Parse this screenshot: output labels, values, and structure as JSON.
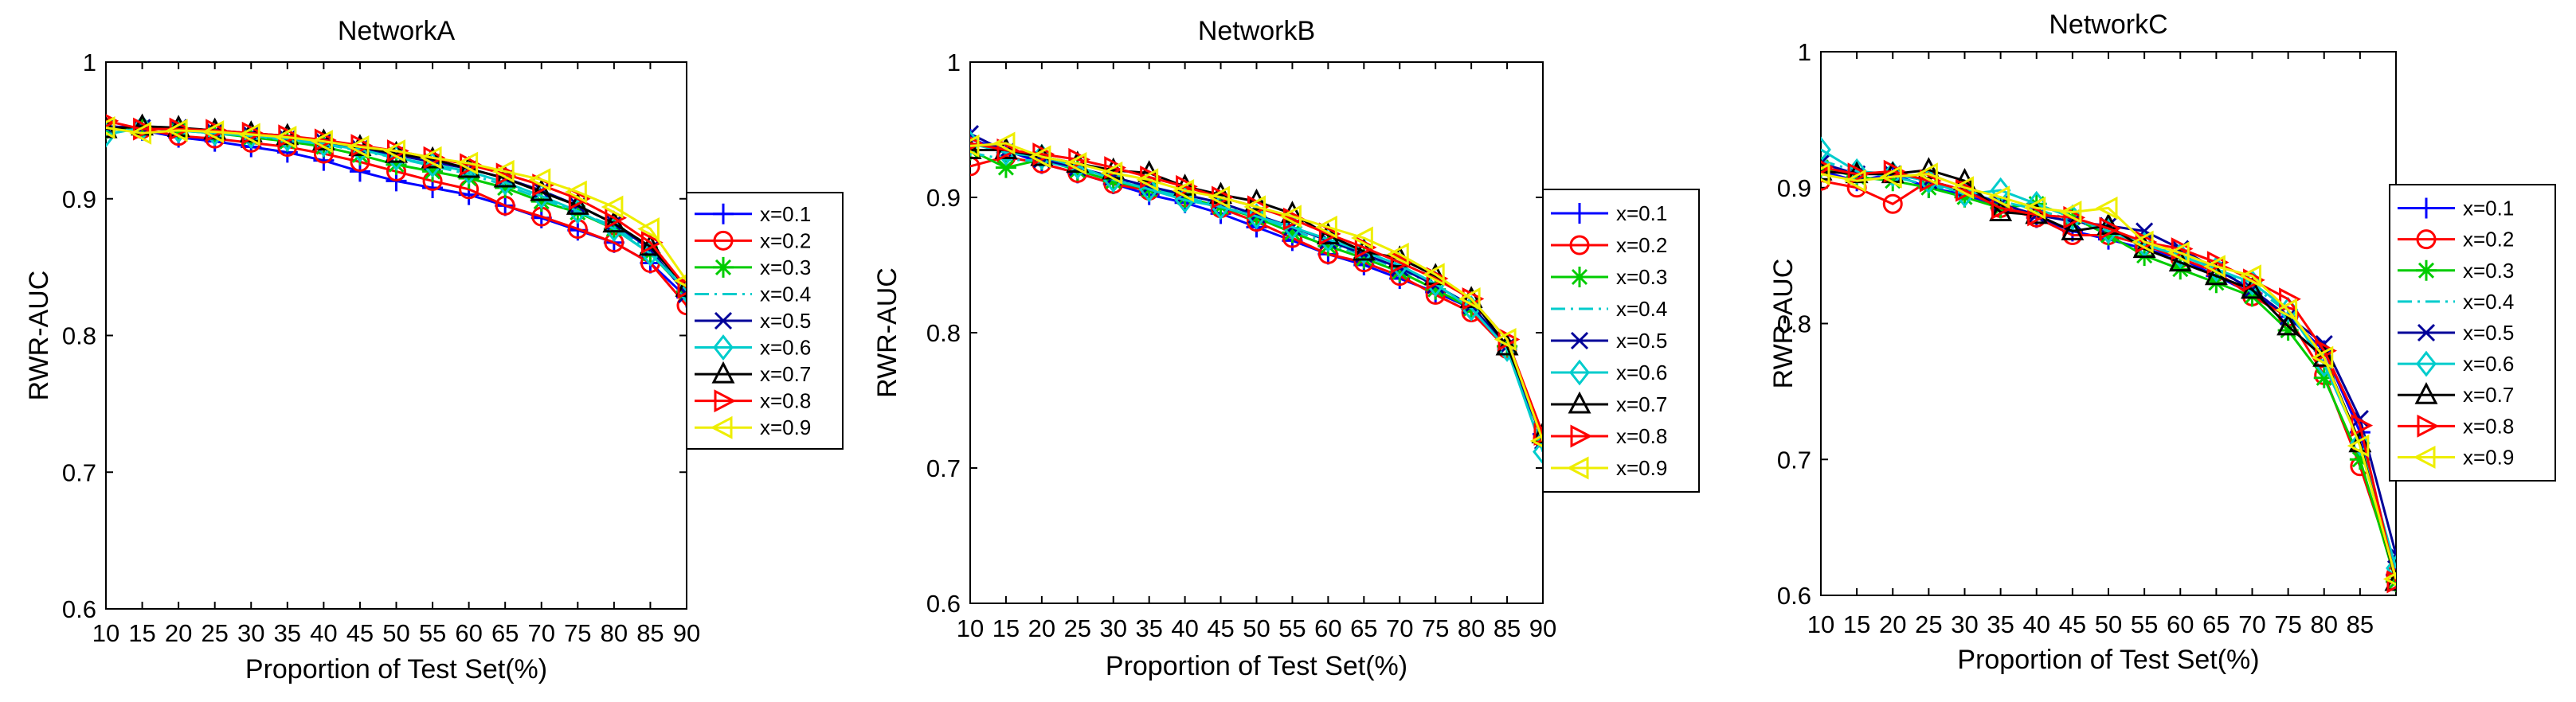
{
  "chart_data": [
    {
      "type": "line",
      "title": "NetworkA",
      "xlabel": "Proportion of Test Set(%)",
      "ylabel": "RWR-AUC",
      "xlim": [
        10,
        90
      ],
      "ylim": [
        0.6,
        1
      ],
      "xticks": [
        10,
        15,
        20,
        25,
        30,
        35,
        40,
        45,
        50,
        55,
        60,
        65,
        70,
        75,
        80,
        85,
        90
      ],
      "yticks": [
        0.6,
        0.7,
        0.8,
        0.9,
        1
      ],
      "ytick_labels": [
        "0.6",
        "0.7",
        "0.8",
        "0.9",
        "1"
      ],
      "legend": "outside-right",
      "x": [
        10,
        15,
        20,
        25,
        30,
        35,
        40,
        45,
        50,
        55,
        60,
        65,
        70,
        75,
        80,
        85,
        90
      ],
      "series": [
        {
          "name": "x=0.1",
          "color": "#0000ff",
          "marker": "plus",
          "line": "solid",
          "values": [
            0.951,
            0.95,
            0.945,
            0.942,
            0.938,
            0.934,
            0.928,
            0.92,
            0.913,
            0.908,
            0.903,
            0.895,
            0.886,
            0.877,
            0.868,
            0.853,
            0.828
          ]
        },
        {
          "name": "x=0.2",
          "color": "#ff0000",
          "marker": "circle",
          "line": "solid",
          "values": [
            0.952,
            0.951,
            0.946,
            0.944,
            0.941,
            0.938,
            0.933,
            0.927,
            0.92,
            0.913,
            0.907,
            0.895,
            0.887,
            0.878,
            0.868,
            0.853,
            0.822
          ]
        },
        {
          "name": "x=0.3",
          "color": "#00cc00",
          "marker": "star",
          "line": "solid",
          "values": [
            0.951,
            0.952,
            0.95,
            0.948,
            0.945,
            0.942,
            0.938,
            0.932,
            0.925,
            0.92,
            0.915,
            0.908,
            0.898,
            0.89,
            0.878,
            0.86,
            0.832
          ]
        },
        {
          "name": "x=0.4",
          "color": "#00cccc",
          "marker": "none",
          "line": "dashdot",
          "values": [
            0.95,
            0.952,
            0.951,
            0.948,
            0.946,
            0.943,
            0.94,
            0.935,
            0.93,
            0.924,
            0.918,
            0.91,
            0.9,
            0.89,
            0.88,
            0.862,
            0.833
          ]
        },
        {
          "name": "x=0.5",
          "color": "#000099",
          "marker": "x",
          "line": "solid",
          "values": [
            0.953,
            0.952,
            0.952,
            0.949,
            0.947,
            0.944,
            0.942,
            0.937,
            0.932,
            0.927,
            0.922,
            0.915,
            0.906,
            0.895,
            0.882,
            0.863,
            0.83
          ]
        },
        {
          "name": "x=0.6",
          "color": "#00cccc",
          "marker": "diamond",
          "line": "solid",
          "values": [
            0.947,
            0.952,
            0.95,
            0.948,
            0.946,
            0.944,
            0.94,
            0.936,
            0.93,
            0.925,
            0.92,
            0.912,
            0.902,
            0.891,
            0.878,
            0.86,
            0.833
          ]
        },
        {
          "name": "x=0.7",
          "color": "#000000",
          "marker": "triangle-up",
          "line": "solid",
          "values": [
            0.951,
            0.953,
            0.952,
            0.95,
            0.948,
            0.946,
            0.942,
            0.938,
            0.933,
            0.929,
            0.922,
            0.915,
            0.905,
            0.895,
            0.882,
            0.865,
            0.835
          ]
        },
        {
          "name": "x=0.8",
          "color": "#ff0000",
          "marker": "triangle-right",
          "line": "solid",
          "values": [
            0.957,
            0.951,
            0.951,
            0.95,
            0.948,
            0.946,
            0.943,
            0.939,
            0.935,
            0.93,
            0.925,
            0.918,
            0.91,
            0.9,
            0.886,
            0.868,
            0.835
          ]
        },
        {
          "name": "x=0.9",
          "color": "#eeee00",
          "marker": "triangle-left",
          "line": "solid",
          "values": [
            0.952,
            0.948,
            0.95,
            0.949,
            0.947,
            0.945,
            0.942,
            0.938,
            0.935,
            0.93,
            0.926,
            0.92,
            0.914,
            0.905,
            0.894,
            0.878,
            0.84
          ]
        }
      ]
    },
    {
      "type": "line",
      "title": "NetworkB",
      "xlabel": "Proportion of Test Set(%)",
      "ylabel": "RWR-AUC",
      "xlim": [
        10,
        90
      ],
      "ylim": [
        0.6,
        1
      ],
      "xticks": [
        10,
        15,
        20,
        25,
        30,
        35,
        40,
        45,
        50,
        55,
        60,
        65,
        70,
        75,
        80,
        85,
        90
      ],
      "yticks": [
        0.6,
        0.7,
        0.8,
        0.9,
        1
      ],
      "ytick_labels": [
        "0.6",
        "0.7",
        "0.8",
        "0.9",
        "1"
      ],
      "legend": "outside-right",
      "x": [
        10,
        15,
        20,
        25,
        30,
        35,
        40,
        45,
        50,
        55,
        60,
        65,
        70,
        75,
        80,
        85,
        90
      ],
      "series": [
        {
          "name": "x=0.1",
          "color": "#0000ff",
          "marker": "plus",
          "line": "solid",
          "values": [
            0.943,
            0.935,
            0.925,
            0.918,
            0.91,
            0.902,
            0.896,
            0.888,
            0.878,
            0.868,
            0.858,
            0.85,
            0.84,
            0.83,
            0.818,
            0.79,
            0.725
          ]
        },
        {
          "name": "x=0.2",
          "color": "#ff0000",
          "marker": "circle",
          "line": "solid",
          "values": [
            0.923,
            0.93,
            0.925,
            0.918,
            0.91,
            0.905,
            0.9,
            0.892,
            0.882,
            0.87,
            0.858,
            0.852,
            0.842,
            0.828,
            0.815,
            0.788,
            0.722
          ]
        },
        {
          "name": "x=0.3",
          "color": "#00cc00",
          "marker": "star",
          "line": "solid",
          "values": [
            0.935,
            0.922,
            0.928,
            0.92,
            0.912,
            0.906,
            0.9,
            0.893,
            0.885,
            0.874,
            0.864,
            0.855,
            0.845,
            0.832,
            0.818,
            0.79,
            0.72
          ]
        },
        {
          "name": "x=0.4",
          "color": "#00cccc",
          "marker": "none",
          "line": "dashdot",
          "values": [
            0.933,
            0.928,
            0.927,
            0.921,
            0.914,
            0.907,
            0.9,
            0.894,
            0.886,
            0.876,
            0.866,
            0.857,
            0.847,
            0.835,
            0.82,
            0.79,
            0.715
          ]
        },
        {
          "name": "x=0.5",
          "color": "#000099",
          "marker": "x",
          "line": "solid",
          "values": [
            0.947,
            0.934,
            0.928,
            0.922,
            0.915,
            0.908,
            0.902,
            0.896,
            0.887,
            0.878,
            0.868,
            0.858,
            0.848,
            0.835,
            0.82,
            0.79,
            0.72
          ]
        },
        {
          "name": "x=0.6",
          "color": "#00cccc",
          "marker": "diamond",
          "line": "solid",
          "values": [
            0.94,
            0.933,
            0.93,
            0.923,
            0.913,
            0.906,
            0.898,
            0.893,
            0.886,
            0.878,
            0.869,
            0.86,
            0.85,
            0.836,
            0.818,
            0.788,
            0.712
          ]
        },
        {
          "name": "x=0.7",
          "color": "#000000",
          "marker": "triangle-up",
          "line": "solid",
          "values": [
            0.935,
            0.935,
            0.93,
            0.925,
            0.92,
            0.918,
            0.908,
            0.902,
            0.897,
            0.888,
            0.872,
            0.86,
            0.855,
            0.842,
            0.825,
            0.79,
            0.725
          ]
        },
        {
          "name": "x=0.8",
          "color": "#ff0000",
          "marker": "triangle-right",
          "line": "solid",
          "values": [
            0.94,
            0.935,
            0.932,
            0.928,
            0.922,
            0.915,
            0.908,
            0.9,
            0.893,
            0.884,
            0.873,
            0.863,
            0.852,
            0.84,
            0.825,
            0.795,
            0.725
          ]
        },
        {
          "name": "x=0.9",
          "color": "#eeee00",
          "marker": "triangle-left",
          "line": "solid",
          "values": [
            0.938,
            0.94,
            0.93,
            0.925,
            0.918,
            0.913,
            0.905,
            0.9,
            0.893,
            0.886,
            0.878,
            0.87,
            0.858,
            0.843,
            0.825,
            0.795,
            0.72
          ]
        }
      ]
    },
    {
      "type": "line",
      "title": "NetworkC",
      "xlabel": "Proportion of Test Set(%)",
      "ylabel": "RWR-AUC",
      "xlim": [
        10,
        90
      ],
      "ylim": [
        0.6,
        1
      ],
      "xticks": [
        10,
        15,
        20,
        25,
        30,
        35,
        40,
        45,
        50,
        55,
        60,
        65,
        70,
        75,
        80,
        85
      ],
      "yticks": [
        0.6,
        0.7,
        0.8,
        0.9,
        1
      ],
      "ytick_labels": [
        "0.6",
        "0.7",
        "0.8",
        "0.9",
        "1"
      ],
      "legend": "outside-right",
      "x": [
        10,
        15,
        20,
        25,
        30,
        35,
        40,
        45,
        50,
        55,
        60,
        65,
        70,
        75,
        80,
        85,
        90
      ],
      "series": [
        {
          "name": "x=0.1",
          "color": "#0000ff",
          "marker": "plus",
          "line": "solid",
          "values": [
            0.912,
            0.905,
            0.91,
            0.9,
            0.895,
            0.885,
            0.878,
            0.868,
            0.862,
            0.855,
            0.848,
            0.835,
            0.822,
            0.805,
            0.78,
            0.72,
            0.615
          ]
        },
        {
          "name": "x=0.2",
          "color": "#ff0000",
          "marker": "circle",
          "line": "solid",
          "values": [
            0.905,
            0.9,
            0.888,
            0.905,
            0.898,
            0.885,
            0.878,
            0.865,
            0.865,
            0.858,
            0.848,
            0.838,
            0.82,
            0.805,
            0.762,
            0.695,
            0.615
          ]
        },
        {
          "name": "x=0.3",
          "color": "#00cc00",
          "marker": "star",
          "line": "solid",
          "values": [
            0.915,
            0.908,
            0.905,
            0.9,
            0.893,
            0.885,
            0.888,
            0.878,
            0.865,
            0.85,
            0.84,
            0.83,
            0.82,
            0.795,
            0.76,
            0.7,
            0.61
          ]
        },
        {
          "name": "x=0.4",
          "color": "#00cccc",
          "marker": "none",
          "line": "dashdot",
          "values": [
            0.92,
            0.912,
            0.908,
            0.902,
            0.896,
            0.89,
            0.884,
            0.876,
            0.868,
            0.86,
            0.85,
            0.84,
            0.828,
            0.808,
            0.775,
            0.71,
            0.612
          ]
        },
        {
          "name": "x=0.5",
          "color": "#000099",
          "marker": "x",
          "line": "solid",
          "values": [
            0.918,
            0.91,
            0.91,
            0.905,
            0.898,
            0.888,
            0.88,
            0.875,
            0.872,
            0.868,
            0.855,
            0.84,
            0.825,
            0.805,
            0.785,
            0.73,
            0.63
          ]
        },
        {
          "name": "x=0.6",
          "color": "#00cccc",
          "marker": "diamond",
          "line": "solid",
          "values": [
            0.928,
            0.912,
            0.91,
            0.905,
            0.895,
            0.898,
            0.888,
            0.878,
            0.868,
            0.858,
            0.85,
            0.84,
            0.83,
            0.81,
            0.77,
            0.712,
            0.62
          ]
        },
        {
          "name": "x=0.7",
          "color": "#000000",
          "marker": "triangle-up",
          "line": "solid",
          "values": [
            0.912,
            0.91,
            0.91,
            0.913,
            0.905,
            0.882,
            0.88,
            0.868,
            0.872,
            0.855,
            0.845,
            0.835,
            0.825,
            0.798,
            0.775,
            0.712,
            0.61
          ]
        },
        {
          "name": "x=0.8",
          "color": "#ff0000",
          "marker": "triangle-right",
          "line": "solid",
          "values": [
            0.915,
            0.91,
            0.912,
            0.905,
            0.898,
            0.885,
            0.88,
            0.878,
            0.87,
            0.86,
            0.855,
            0.845,
            0.832,
            0.818,
            0.78,
            0.725,
            0.61
          ]
        },
        {
          "name": "x=0.9",
          "color": "#eeee00",
          "marker": "triangle-left",
          "line": "solid",
          "values": [
            0.91,
            0.905,
            0.908,
            0.91,
            0.9,
            0.893,
            0.885,
            0.882,
            0.885,
            0.86,
            0.852,
            0.842,
            0.835,
            0.81,
            0.775,
            0.71,
            0.612
          ]
        }
      ]
    }
  ]
}
